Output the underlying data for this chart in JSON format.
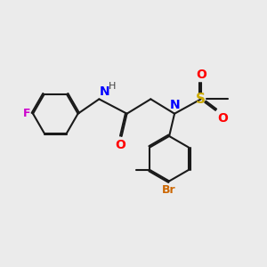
{
  "bg_color": "#ebebeb",
  "bond_color": "#1a1a1a",
  "F_color": "#CC00CC",
  "N_color": "#0000FF",
  "O_color": "#FF0000",
  "S_color": "#CCAA00",
  "Br_color": "#CC6600",
  "line_width": 1.5,
  "dbo": 0.055,
  "ring_r": 0.85,
  "xlim": [
    0,
    10
  ],
  "ylim": [
    0,
    10
  ]
}
